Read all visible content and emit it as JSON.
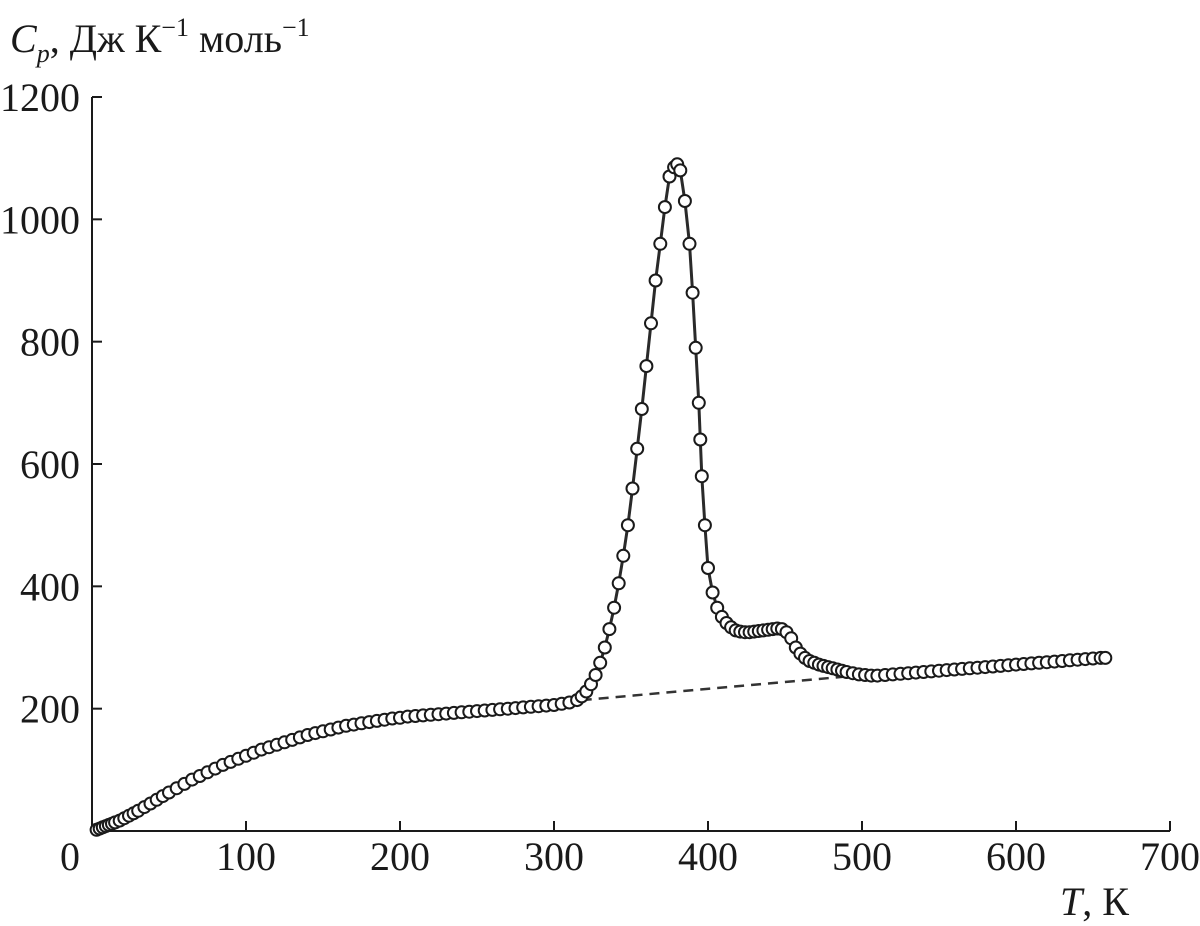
{
  "chart_data": {
    "type": "scatter",
    "ylabel_symbol": "C",
    "ylabel_subscript": "p",
    "ylabel_units": ", Дж К",
    "ylabel_exp1": "−1",
    "ylabel_units2": " моль",
    "ylabel_exp2": "−1",
    "xlabel_symbol": "T",
    "xlabel_units": ", К",
    "xlim": [
      0,
      700
    ],
    "ylim": [
      0,
      1200
    ],
    "x_ticks": [
      "0",
      "100",
      "200",
      "300",
      "400",
      "500",
      "600",
      "700"
    ],
    "y_ticks": [
      "200",
      "400",
      "600",
      "800",
      "1000",
      "1200"
    ],
    "grid": false,
    "series": [
      {
        "marker": "open-circle",
        "connected": true,
        "x": [
          3,
          5,
          7,
          9,
          11,
          13,
          15,
          18,
          21,
          24,
          27,
          30,
          34,
          38,
          42,
          46,
          50,
          55,
          60,
          65,
          70,
          75,
          80,
          85,
          90,
          95,
          100,
          105,
          110,
          115,
          120,
          125,
          130,
          135,
          140,
          145,
          150,
          155,
          160,
          165,
          170,
          175,
          180,
          185,
          190,
          195,
          200,
          205,
          210,
          215,
          220,
          225,
          230,
          235,
          240,
          245,
          250,
          255,
          260,
          265,
          270,
          275,
          280,
          285,
          290,
          295,
          300,
          305,
          310,
          315,
          318,
          321,
          324,
          327,
          330,
          333,
          336,
          339,
          342,
          345,
          348,
          351,
          354,
          357,
          360,
          363,
          366,
          369,
          372,
          375,
          378,
          380,
          382,
          385,
          388,
          390,
          392,
          394,
          395,
          396,
          398,
          400,
          403,
          406,
          409,
          412,
          415,
          418,
          421,
          424,
          427,
          430,
          433,
          436,
          439,
          442,
          445,
          448,
          451,
          454,
          457,
          460,
          463,
          466,
          469,
          472,
          475,
          478,
          481,
          484,
          487,
          490,
          494,
          498,
          502,
          506,
          510,
          515,
          520,
          525,
          530,
          535,
          540,
          545,
          550,
          555,
          560,
          565,
          570,
          575,
          580,
          585,
          590,
          595,
          600,
          605,
          610,
          615,
          620,
          625,
          630,
          635,
          640,
          645,
          650,
          655,
          658
        ],
        "y": [
          2,
          4,
          6,
          8,
          10,
          12,
          14,
          17,
          21,
          25,
          29,
          33,
          39,
          45,
          51,
          57,
          63,
          70,
          77,
          84,
          90,
          96,
          102,
          108,
          113,
          118,
          123,
          128,
          133,
          137,
          141,
          145,
          149,
          153,
          157,
          160,
          163,
          166,
          169,
          172,
          174,
          176,
          178,
          180,
          182,
          184,
          185,
          187,
          188,
          189,
          190,
          191,
          192,
          193,
          194,
          195,
          196,
          197,
          198,
          199,
          200,
          201,
          202,
          203,
          204,
          205,
          206,
          208,
          210,
          214,
          220,
          228,
          240,
          255,
          275,
          300,
          330,
          365,
          405,
          450,
          500,
          560,
          625,
          690,
          760,
          830,
          900,
          960,
          1020,
          1070,
          1085,
          1090,
          1080,
          1030,
          960,
          880,
          790,
          700,
          640,
          580,
          500,
          430,
          390,
          365,
          350,
          340,
          333,
          328,
          326,
          325,
          325,
          326,
          327,
          328,
          329,
          330,
          331,
          330,
          325,
          315,
          300,
          290,
          283,
          278,
          275,
          272,
          270,
          268,
          266,
          264,
          262,
          260,
          258,
          256,
          255,
          254,
          254,
          255,
          256,
          257,
          258,
          259,
          260,
          261,
          262,
          263,
          264,
          265,
          266,
          267,
          268,
          269,
          270,
          271,
          272,
          273,
          274,
          275,
          276,
          277,
          278,
          279,
          280,
          281,
          282,
          283,
          283
        ]
      }
    ],
    "baseline": {
      "style": "dashed",
      "x": [
        318,
        505
      ],
      "y": [
        214,
        256
      ]
    }
  }
}
